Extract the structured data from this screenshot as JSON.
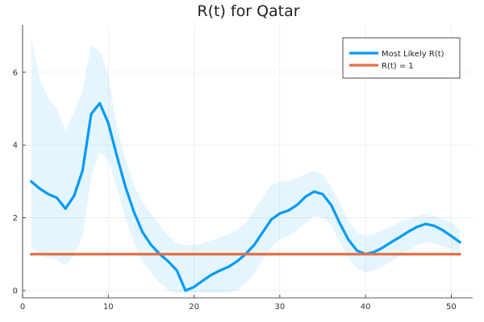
{
  "chart_data": {
    "type": "line",
    "title": "R(t) for Qatar",
    "xlabel": "",
    "ylabel": "",
    "xlim": [
      0,
      52.5
    ],
    "ylim": [
      -0.2,
      7.3
    ],
    "x_ticks": [
      0,
      10,
      20,
      30,
      40,
      50
    ],
    "y_ticks": [
      0,
      2,
      4,
      6
    ],
    "grid": true,
    "legend_position": "top-right",
    "x": [
      1,
      2,
      3,
      4,
      5,
      6,
      7,
      8,
      9,
      10,
      11,
      12,
      13,
      14,
      15,
      16,
      17,
      18,
      19,
      20,
      21,
      22,
      23,
      24,
      25,
      26,
      27,
      28,
      29,
      30,
      31,
      32,
      33,
      34,
      35,
      36,
      37,
      38,
      39,
      40,
      41,
      42,
      43,
      44,
      45,
      46,
      47,
      48,
      49,
      50,
      51
    ],
    "series": [
      {
        "name": "Most Likely R(t)",
        "color": "#009AFA",
        "values": [
          3.0,
          2.8,
          2.65,
          2.55,
          2.25,
          2.6,
          3.3,
          4.85,
          5.15,
          4.6,
          3.7,
          2.85,
          2.15,
          1.6,
          1.25,
          1.0,
          0.8,
          0.55,
          0.0,
          0.1,
          0.27,
          0.43,
          0.55,
          0.65,
          0.8,
          1.0,
          1.25,
          1.6,
          1.95,
          2.12,
          2.2,
          2.35,
          2.58,
          2.72,
          2.65,
          2.35,
          1.85,
          1.4,
          1.1,
          1.0,
          1.06,
          1.18,
          1.33,
          1.47,
          1.62,
          1.75,
          1.83,
          1.78,
          1.66,
          1.5,
          1.33
        ],
        "band_upper": [
          7.0,
          5.8,
          5.3,
          5.0,
          4.4,
          4.9,
          5.5,
          6.75,
          6.6,
          5.9,
          4.5,
          3.6,
          2.9,
          2.4,
          2.1,
          1.8,
          1.5,
          1.3,
          1.25,
          1.25,
          1.3,
          1.38,
          1.46,
          1.55,
          1.65,
          1.85,
          2.2,
          2.55,
          2.9,
          3.0,
          3.0,
          3.1,
          3.2,
          3.3,
          3.2,
          2.85,
          2.4,
          1.9,
          1.6,
          1.5,
          1.55,
          1.66,
          1.76,
          1.88,
          1.98,
          2.05,
          2.1,
          2.05,
          1.98,
          1.88,
          1.68
        ],
        "band_lower": [
          1.2,
          1.0,
          0.9,
          0.85,
          0.7,
          0.95,
          1.5,
          3.1,
          3.8,
          3.6,
          2.8,
          2.0,
          1.3,
          0.8,
          0.48,
          0.2,
          0.0,
          -0.05,
          -0.05,
          -0.05,
          -0.05,
          -0.05,
          -0.05,
          -0.05,
          0.0,
          0.2,
          0.45,
          0.85,
          1.2,
          1.4,
          1.5,
          1.65,
          1.85,
          2.05,
          2.0,
          1.8,
          1.35,
          0.9,
          0.62,
          0.5,
          0.55,
          0.66,
          0.8,
          0.95,
          1.1,
          1.25,
          1.32,
          1.3,
          1.22,
          1.12,
          1.0
        ]
      },
      {
        "name": "R(t) = 1",
        "color": "#E26F46",
        "values": [
          1,
          1,
          1,
          1,
          1,
          1,
          1,
          1,
          1,
          1,
          1,
          1,
          1,
          1,
          1,
          1,
          1,
          1,
          1,
          1,
          1,
          1,
          1,
          1,
          1,
          1,
          1,
          1,
          1,
          1,
          1,
          1,
          1,
          1,
          1,
          1,
          1,
          1,
          1,
          1,
          1,
          1,
          1,
          1,
          1,
          1,
          1,
          1,
          1,
          1,
          1
        ]
      }
    ],
    "band_color": "#009AFA"
  }
}
